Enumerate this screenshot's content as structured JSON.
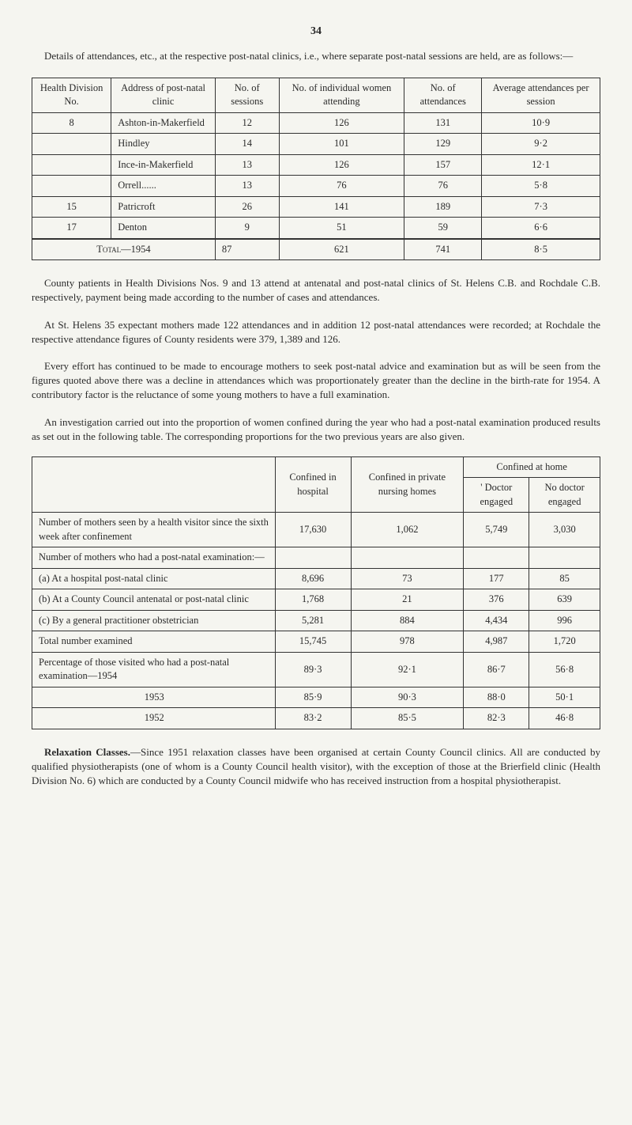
{
  "page_number": "34",
  "intro": "Details of attendances, etc., at the respective post-natal clinics, i.e., where separate post-natal sessions are held, are as follows:—",
  "table1": {
    "headers": {
      "col1": "Health Division No.",
      "col2": "Address of post-natal clinic",
      "col3": "No. of sessions",
      "col4": "No. of individual women attending",
      "col5": "No. of attendances",
      "col6": "Average attendances per session"
    },
    "rows": [
      {
        "div": "8",
        "addr": "Ashton-in-Makerfield",
        "sess": "12",
        "women": "126",
        "att": "131",
        "avg": "10·9"
      },
      {
        "div": "",
        "addr": "Hindley",
        "sess": "14",
        "women": "101",
        "att": "129",
        "avg": "9·2"
      },
      {
        "div": "",
        "addr": "Ince-in-Makerfield",
        "sess": "13",
        "women": "126",
        "att": "157",
        "avg": "12·1"
      },
      {
        "div": "",
        "addr": "Orrell......",
        "sess": "13",
        "women": "76",
        "att": "76",
        "avg": "5·8"
      },
      {
        "div": "15",
        "addr": "Patricroft",
        "sess": "26",
        "women": "141",
        "att": "189",
        "avg": "7·3"
      },
      {
        "div": "17",
        "addr": "Denton",
        "sess": "9",
        "women": "51",
        "att": "59",
        "avg": "6·6"
      }
    ],
    "total": {
      "label": "Total—1954",
      "sess": "87",
      "women": "621",
      "att": "741",
      "avg": "8·5"
    }
  },
  "para1": "County patients in Health Divisions Nos. 9 and 13 attend at antenatal and post-natal clinics of St. Helens C.B. and Rochdale C.B. respectively, payment being made according to the number of cases and attendances.",
  "para2": "At St. Helens 35 expectant mothers made 122 attendances and in addition 12 post-natal attendances were recorded; at Rochdale the respective attendance figures of County residents were 379, 1,389 and 126.",
  "para3": "Every effort has continued to be made to encourage mothers to seek post-natal advice and examination but as will be seen from the figures quoted above there was a decline in attendances which was proportionately greater than the decline in the birth-rate for 1954. A contributory factor is the reluctance of some young mothers to have a full examination.",
  "para4": "An investigation carried out into the proportion of women confined during the year who had a post-natal examination produced results as set out in the following table. The corresponding proportions for the two previous years are also given.",
  "table2": {
    "headers": {
      "col1": "",
      "col2": "Confined in hospital",
      "col3": "Confined in private nursing homes",
      "col4_group": "Confined at home",
      "col4a": "' Doctor engaged",
      "col4b": "No doctor engaged"
    },
    "rows": [
      {
        "label": "Number of mothers seen by a health visitor since the sixth week after confinement",
        "hosp": "17,630",
        "priv": "1,062",
        "doc": "5,749",
        "nodoc": "3,030"
      },
      {
        "label": "Number of mothers who had a post-natal examination:—",
        "hosp": "",
        "priv": "",
        "doc": "",
        "nodoc": ""
      },
      {
        "label": "(a) At a hospital post-natal clinic",
        "hosp": "8,696",
        "priv": "73",
        "doc": "177",
        "nodoc": "85"
      },
      {
        "label": "(b) At a County Council antenatal or post-natal clinic",
        "hosp": "1,768",
        "priv": "21",
        "doc": "376",
        "nodoc": "639"
      },
      {
        "label": "(c) By a general practitioner obstetrician",
        "hosp": "5,281",
        "priv": "884",
        "doc": "4,434",
        "nodoc": "996"
      }
    ],
    "total": {
      "label": "Total number examined",
      "hosp": "15,745",
      "priv": "978",
      "doc": "4,987",
      "nodoc": "1,720"
    },
    "percentage_rows": [
      {
        "label": "Percentage of those visited who had a post-natal examination—1954",
        "hosp": "89·3",
        "priv": "92·1",
        "doc": "86·7",
        "nodoc": "56·8"
      },
      {
        "label": "1953",
        "hosp": "85·9",
        "priv": "90·3",
        "doc": "88·0",
        "nodoc": "50·1"
      },
      {
        "label": "1952",
        "hosp": "83·2",
        "priv": "85·5",
        "doc": "82·3",
        "nodoc": "46·8"
      }
    ]
  },
  "para5_bold": "Relaxation Classes.",
  "para5_rest": "—Since 1951 relaxation classes have been organised at certain County Council clinics. All are conducted by qualified physiotherapists (one of whom is a County Council health visitor), with the exception of those at the Brierfield clinic (Health Division No. 6) which are conducted by a County Council midwife who has received instruction from a hospital physiotherapist."
}
